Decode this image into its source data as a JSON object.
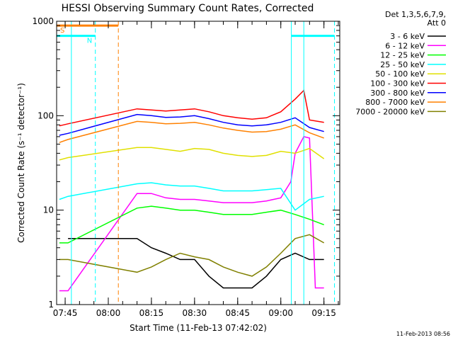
{
  "chart_data": {
    "type": "line",
    "title": "HESSI Observing Summary Count Rates, Corrected",
    "xlabel": "Start Time (11-Feb-13 07:42:02)",
    "ylabel": "Corrected Count Rate (s⁻¹ detector⁻¹)",
    "y_scale": "log",
    "ylim": [
      1,
      1000
    ],
    "xlim": [
      "07:42:02",
      "09:20:30"
    ],
    "x_ticks": [
      "07:45",
      "08:00",
      "08:15",
      "08:30",
      "08:45",
      "09:00",
      "09:15"
    ],
    "y_ticks": [
      "1",
      "10",
      "100",
      "1000"
    ],
    "grid": false,
    "legend": {
      "position": "right",
      "header": [
        "Det 1,3,5,6,7,9,",
        "Att 0"
      ]
    },
    "annotations": {
      "flags": [
        {
          "label": "S",
          "color": "#ff8000",
          "start": "07:42:02",
          "end": "08:03:30",
          "y": 900
        },
        {
          "label": "N",
          "color": "#00ffff",
          "start": "07:42:02",
          "end": "07:55:30",
          "y": 700
        },
        {
          "label": "",
          "color": "#00ffff",
          "start": "09:03:40",
          "end": "09:18:40",
          "y": 700
        }
      ],
      "solid_vlines": [
        {
          "time": "07:42:02",
          "color": "#00ffff"
        },
        {
          "time": "07:47:10",
          "color": "#00ffff"
        },
        {
          "time": "09:03:40",
          "color": "#00ffff"
        },
        {
          "time": "09:08:00",
          "color": "#00ffff"
        }
      ],
      "dashed_vlines": [
        {
          "time": "07:55:30",
          "color": "#00ffff"
        },
        {
          "time": "08:03:30",
          "color": "#ff8000"
        },
        {
          "time": "09:18:40",
          "color": "#00ffff"
        }
      ]
    },
    "series": [
      {
        "name": "3 - 6 keV",
        "color": "#000000",
        "x": [
          "07:46:00",
          "08:10:00",
          "08:15:00",
          "08:20:00",
          "08:25:00",
          "08:30:00",
          "08:35:00",
          "08:40:00",
          "08:45:00",
          "08:50:00",
          "08:55:00",
          "09:00:00",
          "09:05:00",
          "09:10:00",
          "09:15:00"
        ],
        "y": [
          5,
          5,
          4,
          3.5,
          3,
          3,
          2,
          1.5,
          1.5,
          1.5,
          2,
          3,
          3.5,
          3,
          3
        ]
      },
      {
        "name": "6 - 12 keV",
        "color": "#ff00ff",
        "x": [
          "07:43:00",
          "07:46:00",
          "08:10:00",
          "08:15:00",
          "08:20:00",
          "08:25:00",
          "08:30:00",
          "08:35:00",
          "08:40:00",
          "08:45:00",
          "08:50:00",
          "08:55:00",
          "09:00:00",
          "09:03:30",
          "09:05:00",
          "09:08:00",
          "09:10:00",
          "09:12:00",
          "09:15:00"
        ],
        "y": [
          1.4,
          1.4,
          15,
          15,
          13.5,
          13,
          13,
          12.5,
          12,
          12,
          12,
          12.5,
          13.5,
          20,
          40,
          60,
          58,
          1.5,
          1.5
        ]
      },
      {
        "name": "12 - 25 keV",
        "color": "#00ff00",
        "x": [
          "07:43:00",
          "07:46:00",
          "08:10:00",
          "08:15:00",
          "08:20:00",
          "08:25:00",
          "08:30:00",
          "08:35:00",
          "08:40:00",
          "08:45:00",
          "08:50:00",
          "08:55:00",
          "09:00:00",
          "09:05:00",
          "09:10:00",
          "09:15:00"
        ],
        "y": [
          4.5,
          4.5,
          10.5,
          11,
          10.5,
          10,
          10,
          9.5,
          9,
          9,
          9,
          9.5,
          10,
          9,
          8,
          7
        ]
      },
      {
        "name": "25 - 50 keV",
        "color": "#00ffff",
        "x": [
          "07:43:00",
          "07:46:00",
          "08:10:00",
          "08:15:00",
          "08:20:00",
          "08:25:00",
          "08:30:00",
          "08:35:00",
          "08:40:00",
          "08:45:00",
          "08:50:00",
          "08:55:00",
          "09:00:00",
          "09:05:00",
          "09:10:00",
          "09:15:00"
        ],
        "y": [
          13,
          14,
          19,
          19.5,
          18.5,
          18,
          18,
          17,
          16,
          16,
          16,
          16.5,
          17,
          10,
          13,
          14
        ]
      },
      {
        "name": "50 - 100 keV",
        "color": "#e0e000",
        "x": [
          "07:43:00",
          "07:46:00",
          "08:10:00",
          "08:15:00",
          "08:20:00",
          "08:25:00",
          "08:30:00",
          "08:35:00",
          "08:40:00",
          "08:45:00",
          "08:50:00",
          "08:55:00",
          "09:00:00",
          "09:05:00",
          "09:10:00",
          "09:15:00"
        ],
        "y": [
          34,
          36,
          46,
          46,
          44,
          42,
          45,
          44,
          40,
          38,
          37,
          38,
          42,
          40,
          45,
          35
        ]
      },
      {
        "name": "100 - 300 keV",
        "color": "#ff0000",
        "x": [
          "07:43:00",
          "07:46:00",
          "08:10:00",
          "08:15:00",
          "08:20:00",
          "08:25:00",
          "08:30:00",
          "08:35:00",
          "08:40:00",
          "08:45:00",
          "08:50:00",
          "08:55:00",
          "09:00:00",
          "09:05:00",
          "09:08:00",
          "09:10:00",
          "09:15:00"
        ],
        "y": [
          78,
          82,
          118,
          115,
          112,
          115,
          118,
          110,
          100,
          95,
          92,
          95,
          110,
          150,
          185,
          90,
          85
        ]
      },
      {
        "name": "300 - 800 keV",
        "color": "#0000ff",
        "x": [
          "07:43:00",
          "07:46:00",
          "08:10:00",
          "08:15:00",
          "08:20:00",
          "08:25:00",
          "08:30:00",
          "08:35:00",
          "08:40:00",
          "08:45:00",
          "08:50:00",
          "08:55:00",
          "09:00:00",
          "09:05:00",
          "09:10:00",
          "09:15:00"
        ],
        "y": [
          62,
          65,
          103,
          100,
          96,
          97,
          100,
          93,
          85,
          80,
          78,
          80,
          85,
          95,
          75,
          68
        ]
      },
      {
        "name": "800 - 7000 keV",
        "color": "#ff8000",
        "x": [
          "07:43:00",
          "07:46:00",
          "08:10:00",
          "08:15:00",
          "08:20:00",
          "08:25:00",
          "08:30:00",
          "08:35:00",
          "08:40:00",
          "08:45:00",
          "08:50:00",
          "08:55:00",
          "09:00:00",
          "09:05:00",
          "09:10:00",
          "09:15:00"
        ],
        "y": [
          52,
          56,
          87,
          85,
          82,
          83,
          85,
          80,
          74,
          70,
          67,
          68,
          72,
          80,
          66,
          58
        ]
      },
      {
        "name": "7000 - 20000 keV",
        "color": "#808000",
        "x": [
          "07:43:00",
          "07:46:00",
          "08:10:00",
          "08:15:00",
          "08:20:00",
          "08:25:00",
          "08:30:00",
          "08:35:00",
          "08:40:00",
          "08:45:00",
          "08:50:00",
          "08:55:00",
          "09:00:00",
          "09:05:00",
          "09:10:00",
          "09:15:00"
        ],
        "y": [
          3,
          3,
          2.2,
          2.5,
          3,
          3.5,
          3.2,
          3,
          2.5,
          2.2,
          2,
          2.5,
          3.5,
          5,
          5.5,
          4.5
        ]
      }
    ]
  },
  "footer": {
    "timestamp": "11-Feb-2013 08:56"
  }
}
